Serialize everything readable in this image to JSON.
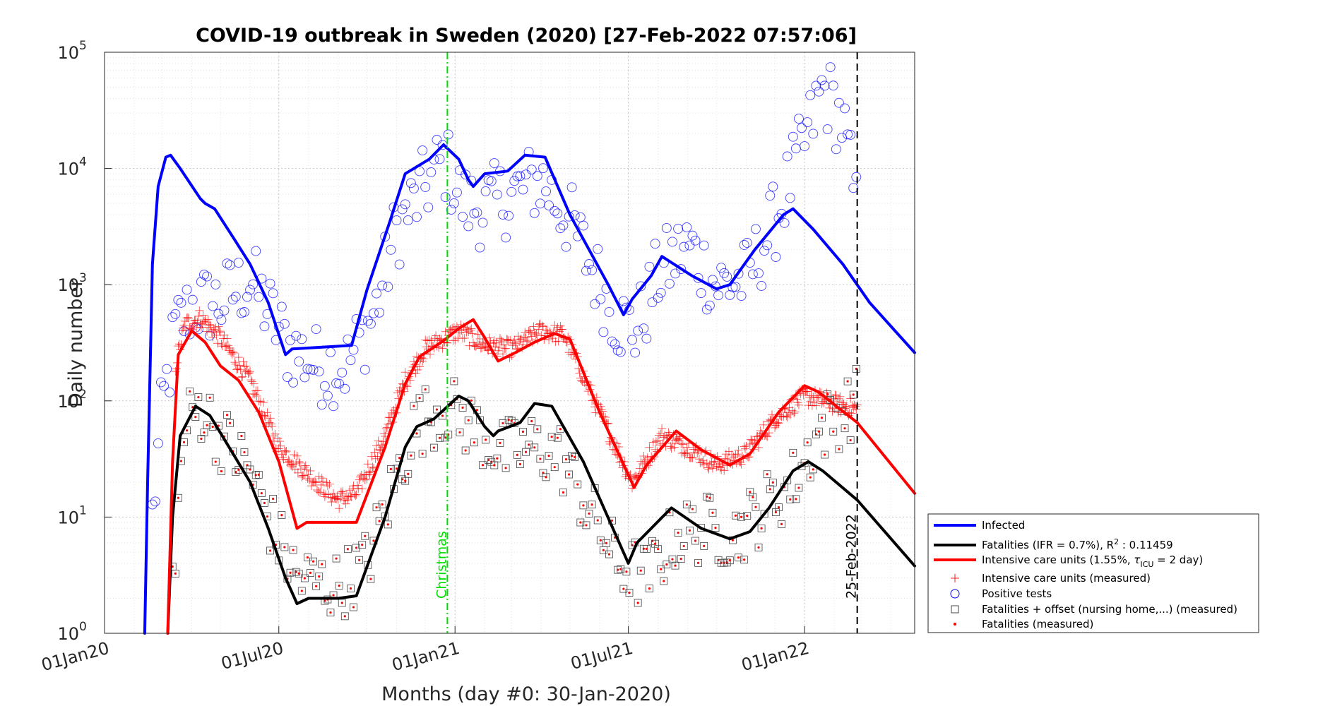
{
  "chart_data": {
    "type": "line",
    "title": "COVID-19 outbreak in Sweden (2020) [27-Feb-2022 07:57:06]",
    "xlabel": "Months (day #0: 30-Jan-2020)",
    "ylabel": "Daily number",
    "yscale": "log",
    "grid": true,
    "legend_position": "right",
    "xlim": [
      "2020-01-01",
      "2022-04-26"
    ],
    "ylim": [
      1,
      100000
    ],
    "x_ticks": [
      {
        "date": "2020-01-01",
        "label": "01Jan20"
      },
      {
        "date": "2020-07-01",
        "label": "01Jul20"
      },
      {
        "date": "2021-01-01",
        "label": "01Jan21"
      },
      {
        "date": "2021-07-01",
        "label": "01Jul21"
      },
      {
        "date": "2022-01-01",
        "label": "01Jan22"
      }
    ],
    "y_ticks": [
      {
        "value": 1,
        "base": "10",
        "exp": "0"
      },
      {
        "value": 10,
        "base": "10",
        "exp": "1"
      },
      {
        "value": 100,
        "base": "10",
        "exp": "2"
      },
      {
        "value": 1000,
        "base": "10",
        "exp": "3"
      },
      {
        "value": 10000,
        "base": "10",
        "exp": "4"
      },
      {
        "value": 100000,
        "base": "10",
        "exp": "5"
      }
    ],
    "vlines": [
      {
        "date": "2020-12-24",
        "label": "Christmas",
        "color": "#00dd00",
        "style": "dashdot"
      },
      {
        "date": "2022-02-25",
        "label": "25-Feb-2022",
        "color": "#000000",
        "style": "dashed"
      }
    ],
    "lines": [
      {
        "key": "infected",
        "color": "#0000ff",
        "points": [
          [
            "2020-02-12",
            1
          ],
          [
            "2020-02-15",
            20
          ],
          [
            "2020-02-20",
            1500
          ],
          [
            "2020-02-26",
            7000
          ],
          [
            "2020-03-05",
            12500
          ],
          [
            "2020-03-10",
            13000
          ],
          [
            "2020-03-20",
            10000
          ],
          [
            "2020-04-10",
            5500
          ],
          [
            "2020-04-15",
            5000
          ],
          [
            "2020-04-25",
            4500
          ],
          [
            "2020-05-15",
            2500
          ],
          [
            "2020-06-01",
            1500
          ],
          [
            "2020-06-20",
            700
          ],
          [
            "2020-07-08",
            250
          ],
          [
            "2020-07-15",
            280
          ],
          [
            "2020-08-15",
            290
          ],
          [
            "2020-09-15",
            300
          ],
          [
            "2020-10-01",
            900
          ],
          [
            "2020-10-25",
            3500
          ],
          [
            "2020-11-10",
            9000
          ],
          [
            "2020-12-05",
            12000
          ],
          [
            "2020-12-20",
            16000
          ],
          [
            "2021-01-05",
            12000
          ],
          [
            "2021-01-15",
            8000
          ],
          [
            "2021-01-20",
            7000
          ],
          [
            "2021-02-01",
            9000
          ],
          [
            "2021-02-25",
            9500
          ],
          [
            "2021-03-15",
            13000
          ],
          [
            "2021-04-05",
            12500
          ],
          [
            "2021-05-01",
            4000
          ],
          [
            "2021-06-10",
            1000
          ],
          [
            "2021-06-26",
            550
          ],
          [
            "2021-07-05",
            750
          ],
          [
            "2021-07-25",
            1200
          ],
          [
            "2021-08-05",
            1750
          ],
          [
            "2021-09-05",
            1200
          ],
          [
            "2021-10-01",
            920
          ],
          [
            "2021-10-15",
            1000
          ],
          [
            "2021-11-10",
            2000
          ],
          [
            "2021-12-10",
            4000
          ],
          [
            "2021-12-20",
            4500
          ],
          [
            "2022-01-10",
            3000
          ],
          [
            "2022-02-10",
            1500
          ],
          [
            "2022-03-10",
            700
          ],
          [
            "2022-04-26",
            260
          ]
        ]
      },
      {
        "key": "fatalities",
        "color": "#000000",
        "points": [
          [
            "2020-03-07",
            1
          ],
          [
            "2020-03-12",
            10
          ],
          [
            "2020-03-20",
            50
          ],
          [
            "2020-04-05",
            90
          ],
          [
            "2020-04-20",
            75
          ],
          [
            "2020-05-10",
            40
          ],
          [
            "2020-06-01",
            20
          ],
          [
            "2020-06-20",
            8
          ],
          [
            "2020-07-08",
            3
          ],
          [
            "2020-07-20",
            1.8
          ],
          [
            "2020-08-01",
            2
          ],
          [
            "2020-09-01",
            2
          ],
          [
            "2020-09-20",
            2.1
          ],
          [
            "2020-10-20",
            10
          ],
          [
            "2020-11-10",
            40
          ],
          [
            "2020-11-22",
            60
          ],
          [
            "2020-12-10",
            70
          ],
          [
            "2021-01-05",
            110
          ],
          [
            "2021-01-15",
            100
          ],
          [
            "2021-02-01",
            60
          ],
          [
            "2021-02-10",
            50
          ],
          [
            "2021-02-15",
            55
          ],
          [
            "2021-03-10",
            65
          ],
          [
            "2021-03-25",
            95
          ],
          [
            "2021-04-12",
            90
          ],
          [
            "2021-05-15",
            30
          ],
          [
            "2021-07-01",
            4
          ],
          [
            "2021-07-10",
            6
          ],
          [
            "2021-08-15",
            12
          ],
          [
            "2021-09-15",
            8
          ],
          [
            "2021-10-15",
            6.5
          ],
          [
            "2021-11-05",
            7.5
          ],
          [
            "2021-11-25",
            12
          ],
          [
            "2021-12-20",
            25
          ],
          [
            "2022-01-05",
            30
          ],
          [
            "2022-01-20",
            25
          ],
          [
            "2022-02-25",
            14
          ],
          [
            "2022-04-26",
            3.8
          ]
        ]
      },
      {
        "key": "icu",
        "color": "#ff0000",
        "points": [
          [
            "2020-03-07",
            1
          ],
          [
            "2020-03-12",
            30
          ],
          [
            "2020-03-18",
            250
          ],
          [
            "2020-04-01",
            400
          ],
          [
            "2020-04-15",
            320
          ],
          [
            "2020-05-01",
            200
          ],
          [
            "2020-05-20",
            150
          ],
          [
            "2020-06-10",
            80
          ],
          [
            "2020-07-01",
            30
          ],
          [
            "2020-07-20",
            8
          ],
          [
            "2020-07-30",
            9
          ],
          [
            "2020-09-20",
            9
          ],
          [
            "2020-10-20",
            40
          ],
          [
            "2020-11-10",
            140
          ],
          [
            "2020-11-25",
            240
          ],
          [
            "2020-12-20",
            330
          ],
          [
            "2021-01-05",
            420
          ],
          [
            "2021-01-20",
            500
          ],
          [
            "2021-02-01",
            350
          ],
          [
            "2021-02-15",
            220
          ],
          [
            "2021-03-05",
            260
          ],
          [
            "2021-03-25",
            320
          ],
          [
            "2021-04-15",
            380
          ],
          [
            "2021-05-01",
            340
          ],
          [
            "2021-06-01",
            80
          ],
          [
            "2021-07-07",
            18
          ],
          [
            "2021-07-20",
            28
          ],
          [
            "2021-08-20",
            55
          ],
          [
            "2021-09-15",
            38
          ],
          [
            "2021-10-15",
            28
          ],
          [
            "2021-11-05",
            35
          ],
          [
            "2021-12-05",
            80
          ],
          [
            "2022-01-01",
            135
          ],
          [
            "2022-01-15",
            120
          ],
          [
            "2022-02-25",
            65
          ],
          [
            "2022-04-26",
            16
          ]
        ]
      }
    ],
    "legend": [
      {
        "key": "infected",
        "text": "Infected",
        "marker": "line",
        "color": "#0000ff"
      },
      {
        "key": "fatalities",
        "text_main": "Fatalities (IFR = 0.7%), R",
        "text_sup": "2",
        "text_tail": " : 0.11459",
        "marker": "line",
        "color": "#000000"
      },
      {
        "key": "icu",
        "text_main": "Intensive care units (1.55%, ",
        "text_tau": "τ",
        "text_sub": "ICU",
        "text_tail": " = 2 day)",
        "marker": "line",
        "color": "#ff0000"
      },
      {
        "key": "icu_measured",
        "text": "Intensive care units (measured)",
        "marker": "plus",
        "color": "#ff0000"
      },
      {
        "key": "positive_tests",
        "text": "Positive tests",
        "marker": "circle",
        "color": "#0000ff"
      },
      {
        "key": "fatalities_offset",
        "text": "Fatalities + offset (nursing home,...) (measured)",
        "marker": "square",
        "color": "#000000"
      },
      {
        "key": "fatalities_measured",
        "text": "Fatalities (measured)",
        "marker": "dot",
        "color": "#ff0000"
      }
    ],
    "scatter_bands": [
      {
        "key": "positive_tests",
        "marker": "circle",
        "color": "#0000ff",
        "spread": 0.35,
        "density": 1,
        "path": [
          [
            "2020-02-20",
            10
          ],
          [
            "2020-03-01",
            80
          ],
          [
            "2020-03-15",
            400
          ],
          [
            "2020-04-01",
            650
          ],
          [
            "2020-05-01",
            700
          ],
          [
            "2020-06-01",
            1100
          ],
          [
            "2020-06-20",
            600
          ],
          [
            "2020-07-10",
            300
          ],
          [
            "2020-08-10",
            200
          ],
          [
            "2020-09-10",
            200
          ],
          [
            "2020-10-10",
            600
          ],
          [
            "2020-11-01",
            3000
          ],
          [
            "2020-12-01",
            7000
          ],
          [
            "2020-12-20",
            12000
          ],
          [
            "2021-01-10",
            5000
          ],
          [
            "2021-02-01",
            4500
          ],
          [
            "2021-03-01",
            6000
          ],
          [
            "2021-04-01",
            8000
          ],
          [
            "2021-05-01",
            3500
          ],
          [
            "2021-06-01",
            1000
          ],
          [
            "2021-06-20",
            500
          ],
          [
            "2021-07-10",
            400
          ],
          [
            "2021-08-01",
            1200
          ],
          [
            "2021-09-01",
            2200
          ],
          [
            "2021-10-01",
            1000
          ],
          [
            "2021-11-01",
            1100
          ],
          [
            "2021-12-01",
            3500
          ],
          [
            "2022-01-05",
            20000
          ],
          [
            "2022-01-20",
            50000
          ],
          [
            "2022-02-10",
            25000
          ],
          [
            "2022-02-25",
            4000
          ]
        ]
      },
      {
        "key": "icu_measured",
        "marker": "plus",
        "color": "#ff0000",
        "spread": 0.08,
        "density": 3,
        "path": [
          [
            "2020-03-15",
            200
          ],
          [
            "2020-03-25",
            450
          ],
          [
            "2020-04-10",
            520
          ],
          [
            "2020-05-01",
            350
          ],
          [
            "2020-06-01",
            150
          ],
          [
            "2020-07-01",
            40
          ],
          [
            "2020-08-10",
            20
          ],
          [
            "2020-09-01",
            14
          ],
          [
            "2020-09-20",
            16
          ],
          [
            "2020-10-20",
            50
          ],
          [
            "2020-11-10",
            150
          ],
          [
            "2020-12-01",
            280
          ],
          [
            "2021-01-05",
            400
          ],
          [
            "2021-02-01",
            300
          ],
          [
            "2021-03-01",
            280
          ],
          [
            "2021-04-01",
            400
          ],
          [
            "2021-04-25",
            370
          ],
          [
            "2021-06-01",
            80
          ],
          [
            "2021-07-05",
            20
          ],
          [
            "2021-08-05",
            50
          ],
          [
            "2021-09-01",
            40
          ],
          [
            "2021-10-01",
            28
          ],
          [
            "2021-11-01",
            35
          ],
          [
            "2021-12-01",
            70
          ],
          [
            "2022-01-01",
            110
          ],
          [
            "2022-02-25",
            85
          ]
        ]
      },
      {
        "key": "fatalities_offset",
        "marker": "square",
        "color": "#000000",
        "spread": 0.3,
        "density": 1,
        "path": [
          [
            "2020-03-12",
            3
          ],
          [
            "2020-03-25",
            60
          ],
          [
            "2020-04-10",
            90
          ],
          [
            "2020-05-01",
            50
          ],
          [
            "2020-06-01",
            25
          ],
          [
            "2020-06-25",
            8
          ],
          [
            "2020-07-20",
            3
          ],
          [
            "2020-09-01",
            2.5
          ],
          [
            "2020-10-01",
            4
          ],
          [
            "2020-10-25",
            15
          ],
          [
            "2020-11-20",
            60
          ],
          [
            "2020-12-20",
            90
          ],
          [
            "2021-01-20",
            60
          ],
          [
            "2021-02-20",
            35
          ],
          [
            "2021-03-20",
            40
          ],
          [
            "2021-04-20",
            35
          ],
          [
            "2021-05-20",
            12
          ],
          [
            "2021-06-20",
            4
          ],
          [
            "2021-07-20",
            3
          ],
          [
            "2021-08-20",
            7
          ],
          [
            "2021-09-20",
            8
          ],
          [
            "2021-10-20",
            7
          ],
          [
            "2021-11-20",
            12
          ],
          [
            "2021-12-20",
            20
          ],
          [
            "2022-01-20",
            60
          ],
          [
            "2022-02-25",
            100
          ]
        ]
      }
    ]
  }
}
